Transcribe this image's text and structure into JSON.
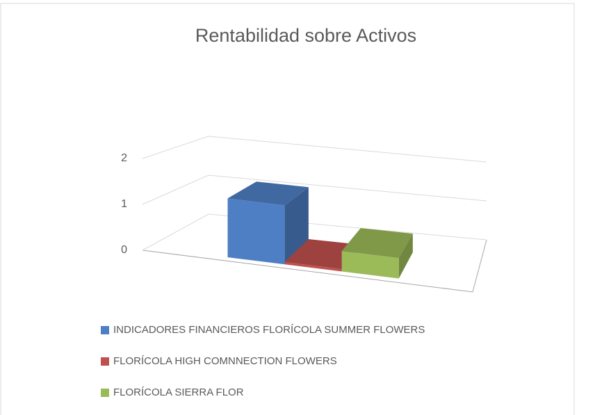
{
  "chart_data": {
    "type": "bar3d",
    "title": "Rentabilidad sobre Activos",
    "categories": [
      null
    ],
    "series": [
      {
        "name": "INDICADORES FINANCIEROS  FLORÍCOLA SUMMER FLOWERS",
        "color": "#4e7fc4",
        "values": [
          1.3
        ]
      },
      {
        "name": "FLORÍCOLA HIGH COMNNECTION FLOWERS",
        "color": "#c0504d",
        "values": [
          0.05
        ]
      },
      {
        "name": "FLORÍCOLA SIERRA FLOR",
        "color": "#9bbb59",
        "values": [
          0.45
        ]
      }
    ],
    "ylim": [
      0,
      2
    ],
    "yticks": [
      0,
      1,
      2
    ],
    "grid": true,
    "legend": "bottom"
  }
}
